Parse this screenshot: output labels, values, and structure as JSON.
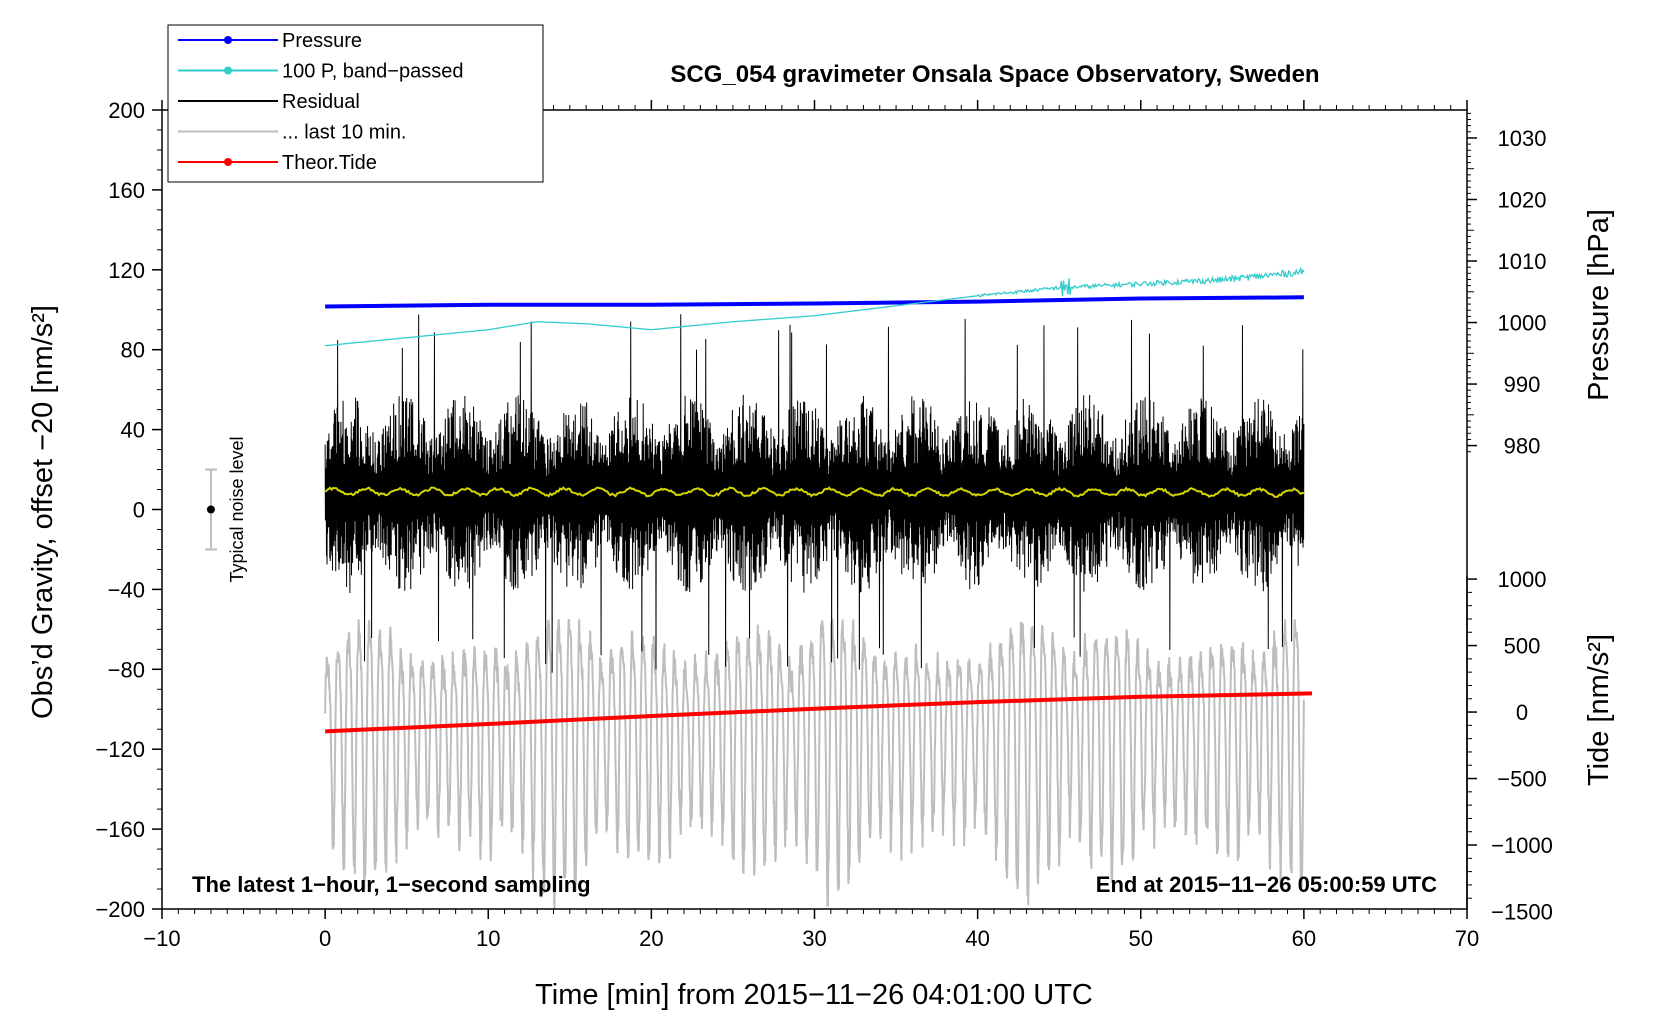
{
  "chart_data": {
    "type": "line",
    "title": "SCG_054 gravimeter Onsala Space Observatory, Sweden",
    "xlabel": "Time [min] from 2015−11−26 04:01:00 UTC",
    "ylabel_left": "Obs’d Gravity, offset −20 [nm/s²]",
    "ylabel_right_top": "Pressure [hPa]",
    "ylabel_right_bottom": "Tide [nm/s²]",
    "xlim": [
      -10,
      70
    ],
    "ylim_left": [
      -200,
      200
    ],
    "xticks": [
      {
        "v": -10,
        "label": "−10"
      },
      {
        "v": 0,
        "label": "0"
      },
      {
        "v": 10,
        "label": "10"
      },
      {
        "v": 20,
        "label": "20"
      },
      {
        "v": 30,
        "label": "30"
      },
      {
        "v": 40,
        "label": "40"
      },
      {
        "v": 50,
        "label": "50"
      },
      {
        "v": 60,
        "label": "60"
      },
      {
        "v": 70,
        "label": "70"
      }
    ],
    "yticks_left": [
      {
        "v": 200,
        "label": "200"
      },
      {
        "v": 160,
        "label": "160"
      },
      {
        "v": 120,
        "label": "120"
      },
      {
        "v": 80,
        "label": "80"
      },
      {
        "v": 40,
        "label": "40"
      },
      {
        "v": 0,
        "label": "0"
      },
      {
        "v": -40,
        "label": "−40"
      },
      {
        "v": -80,
        "label": "−80"
      },
      {
        "v": -120,
        "label": "−120"
      },
      {
        "v": -160,
        "label": "−160"
      },
      {
        "v": -200,
        "label": "−200"
      }
    ],
    "pressure_axis": {
      "ticks": [
        {
          "v": 1030,
          "label": "1030"
        },
        {
          "v": 1020,
          "label": "1020"
        },
        {
          "v": 1010,
          "label": "1010"
        },
        {
          "v": 1000,
          "label": "1000"
        },
        {
          "v": 990,
          "label": "990"
        },
        {
          "v": 980,
          "label": "980"
        }
      ],
      "scale": {
        "p0": 1000,
        "g0": 93.6,
        "gPerHpa": 3.08
      }
    },
    "tide_axis": {
      "ticks": [
        {
          "v": 1000,
          "label": "1000"
        },
        {
          "v": 500,
          "label": "500"
        },
        {
          "v": 0,
          "label": "0"
        },
        {
          "v": -500,
          "label": "−500"
        },
        {
          "v": -1000,
          "label": "−1000"
        },
        {
          "v": -1500,
          "label": "−1500"
        }
      ],
      "scale": {
        "t0": 0,
        "g0": -101.4,
        "gPerUnit": 0.06657
      }
    },
    "series": [
      {
        "name": "Pressure",
        "color": "#0000ff",
        "unit": "hPa",
        "x": [
          0,
          10,
          20,
          30,
          40,
          50,
          60
        ],
        "values": [
          1002.6,
          1002.9,
          1002.9,
          1003.1,
          1003.4,
          1003.9,
          1004.1
        ]
      },
      {
        "name": "100 P, band−passed",
        "color": "#33cccc",
        "unit": "nm/s²",
        "x": [
          0,
          5,
          10,
          13,
          16,
          20,
          25,
          30,
          35,
          40,
          45,
          50,
          55,
          60
        ],
        "values": [
          82,
          86,
          90,
          94,
          93,
          90,
          94,
          97,
          102,
          107,
          111,
          113,
          115,
          119
        ]
      },
      {
        "name": "Residual",
        "color": "#000000",
        "unit": "nm/s²",
        "x": [
          0,
          60
        ],
        "values": [
          8,
          8
        ],
        "noise_amplitude_typical": 40,
        "noise_amplitude_max": 90
      },
      {
        "name": "... last 10 min.",
        "color": "#bdbdbd",
        "unit": "nm/s²",
        "x": [
          0,
          60
        ],
        "values": [
          -110,
          -110
        ],
        "amplitude_typical": 50
      },
      {
        "name": "Theor.Tide",
        "color": "#ff0000",
        "unit": "nm/s²",
        "x": [
          0,
          10,
          20,
          30,
          40,
          50,
          60.5
        ],
        "values": [
          -145,
          -90,
          -30,
          25,
          75,
          115,
          140
        ]
      },
      {
        "name": "Smoothed residual",
        "color": "#d4d400",
        "unit": "nm/s²",
        "x": [
          0,
          60
        ],
        "values": [
          9,
          8.5
        ]
      }
    ],
    "noise_indicator": {
      "label": "Typical noise level",
      "x": -7,
      "center": 0,
      "low": -20,
      "high": 20
    },
    "annotations": {
      "bottom_left": "The latest 1−hour, 1−second sampling",
      "bottom_right": "End at 2015−11−26 05:00:59 UTC"
    },
    "legend": {
      "placement": "top-left",
      "entries": [
        {
          "label": "Pressure",
          "color": "#0000ff",
          "marker": true
        },
        {
          "label": "100 P, band−passed",
          "color": "#33cccc",
          "marker": true
        },
        {
          "label": "Residual",
          "color": "#000000",
          "marker": false
        },
        {
          "label": "... last 10 min.",
          "color": "#bdbdbd",
          "marker": false
        },
        {
          "label": "Theor.Tide",
          "color": "#ff0000",
          "marker": true
        }
      ]
    }
  }
}
